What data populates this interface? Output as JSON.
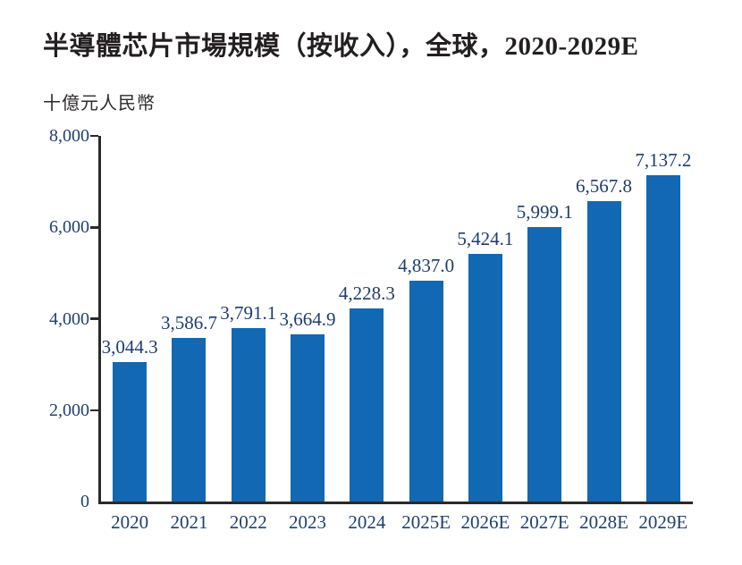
{
  "title": "半導體芯片市場規模（按收入），全球，2020-2029E",
  "unit_label": "十億元人民幣",
  "colors": {
    "bar": "#1268b2",
    "value_label": "#1f3c6e",
    "axis": "#2b2a29",
    "tick_label": "#21406f",
    "title": "#231f20"
  },
  "chart_data": {
    "type": "bar",
    "title": "半導體芯片市場規模（按收入），全球，2020-2029E",
    "ylabel": "十億元人民幣",
    "xlabel": "",
    "categories": [
      "2020",
      "2021",
      "2022",
      "2023",
      "2024",
      "2025E",
      "2026E",
      "2027E",
      "2028E",
      "2029E"
    ],
    "values": [
      3044.3,
      3586.7,
      3791.1,
      3664.9,
      4228.3,
      4837.0,
      5424.1,
      5999.1,
      6567.8,
      7137.2
    ],
    "value_labels": [
      "3,044.3",
      "3,586.7",
      "3,791.1",
      "3,664.9",
      "4,228.3",
      "4,837.0",
      "5,424.1",
      "5,999.1",
      "6,567.8",
      "7,137.2"
    ],
    "y_ticks": [
      {
        "value": 0,
        "label": "0"
      },
      {
        "value": 2000,
        "label": "2,000"
      },
      {
        "value": 4000,
        "label": "4,000"
      },
      {
        "value": 6000,
        "label": "6,000"
      },
      {
        "value": 8000,
        "label": "8,000"
      }
    ],
    "ylim": [
      0,
      8000
    ],
    "grid": false,
    "legend": null
  }
}
